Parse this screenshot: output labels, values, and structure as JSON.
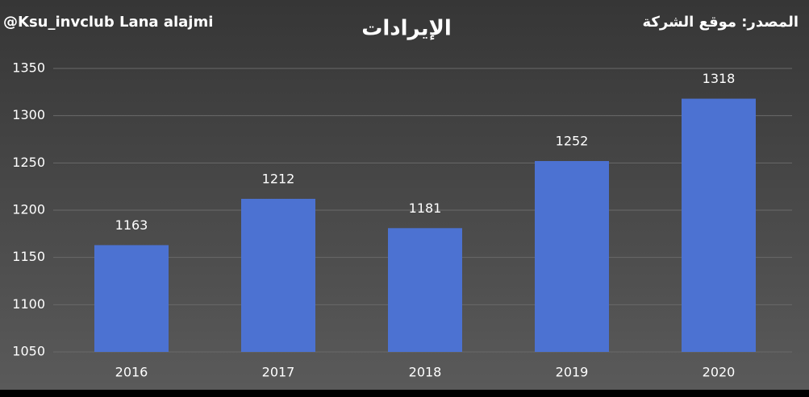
{
  "chart_data": {
    "type": "bar",
    "title": "الإيرادات",
    "annotations": [
      "@Ksu_invclub Lana alajmi",
      "المصدر: موقع الشركة"
    ],
    "categories": [
      "2016",
      "2017",
      "2018",
      "2019",
      "2020"
    ],
    "values": [
      1163,
      1212,
      1181,
      1252,
      1318
    ],
    "color": "#4c72d2",
    "ylim": [
      1050,
      1350
    ],
    "yticks": [
      1050,
      1100,
      1150,
      1200,
      1250,
      1300,
      1350
    ],
    "grid": true
  }
}
